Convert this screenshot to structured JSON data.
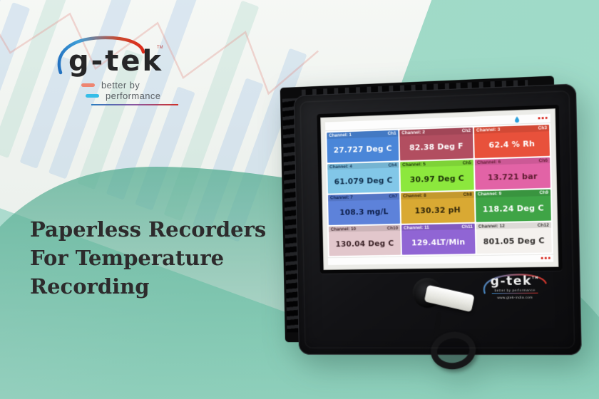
{
  "brand": {
    "name": "g-tek",
    "trademark": "TM",
    "tagline_line1": "better by",
    "tagline_line2": "performance"
  },
  "headline": {
    "line1": "Paperless Recorders",
    "line2": "For Temperature",
    "line3": "Recording"
  },
  "device": {
    "logo": {
      "name": "g-tek",
      "trademark": "TM",
      "tagline": "better by performance",
      "website": "www.gtek-india.com"
    },
    "screen": {
      "channels": [
        {
          "name": "Channel: 1",
          "ch": "Ch1",
          "value": "27.727 Deg C",
          "bg": "#4a86d8",
          "fg": "#ffffff"
        },
        {
          "name": "Channel: 2",
          "ch": "Ch2",
          "value": "82.38 Deg F",
          "bg": "#b24e60",
          "fg": "#ffffff"
        },
        {
          "name": "Channel: 3",
          "ch": "Ch3",
          "value": "62.4 % Rh",
          "bg": "#e8513b",
          "fg": "#ffffff"
        },
        {
          "name": "Channel: 4",
          "ch": "Ch4",
          "value": "61.079 Deg C",
          "bg": "#82c7e8",
          "fg": "#10304e"
        },
        {
          "name": "Channel: 5",
          "ch": "Ch5",
          "value": "30.97 Deg C",
          "bg": "#8ce83d",
          "fg": "#1c3208"
        },
        {
          "name": "Channel: 6",
          "ch": "Ch6",
          "value": "13.721 bar",
          "bg": "#e263a6",
          "fg": "#5e1b30"
        },
        {
          "name": "Channel: 7",
          "ch": "Ch7",
          "value": "108.3 mg/L",
          "bg": "#5d82da",
          "fg": "#0d1e4a"
        },
        {
          "name": "Channel: 8",
          "ch": "Ch8",
          "value": "130.32 pH",
          "bg": "#d9a933",
          "fg": "#33270a"
        },
        {
          "name": "Channel: 9",
          "ch": "Ch9",
          "value": "118.24 Deg C",
          "bg": "#3fa446",
          "fg": "#ffffff"
        },
        {
          "name": "Channel: 10",
          "ch": "Ch10",
          "value": "130.04 Deg C",
          "bg": "#e2c7cc",
          "fg": "#3c2328"
        },
        {
          "name": "Channel: 11",
          "ch": "Ch11",
          "value": "129.4LT/Min",
          "bg": "#9065d4",
          "fg": "#ffffff"
        },
        {
          "name": "Channel: 12",
          "ch": "Ch12",
          "value": "801.05 Deg C",
          "bg": "#f4f1ee",
          "fg": "#33302e"
        }
      ]
    }
  },
  "background": {
    "chart_bars": [
      72,
      46,
      82,
      52,
      88,
      40,
      78,
      50,
      86,
      44,
      80,
      55,
      70
    ],
    "mint": "#a0d9c7",
    "teal_wave": "#5cb096",
    "accent_red": "#d03028",
    "accent_blue": "#2a7cc0"
  }
}
